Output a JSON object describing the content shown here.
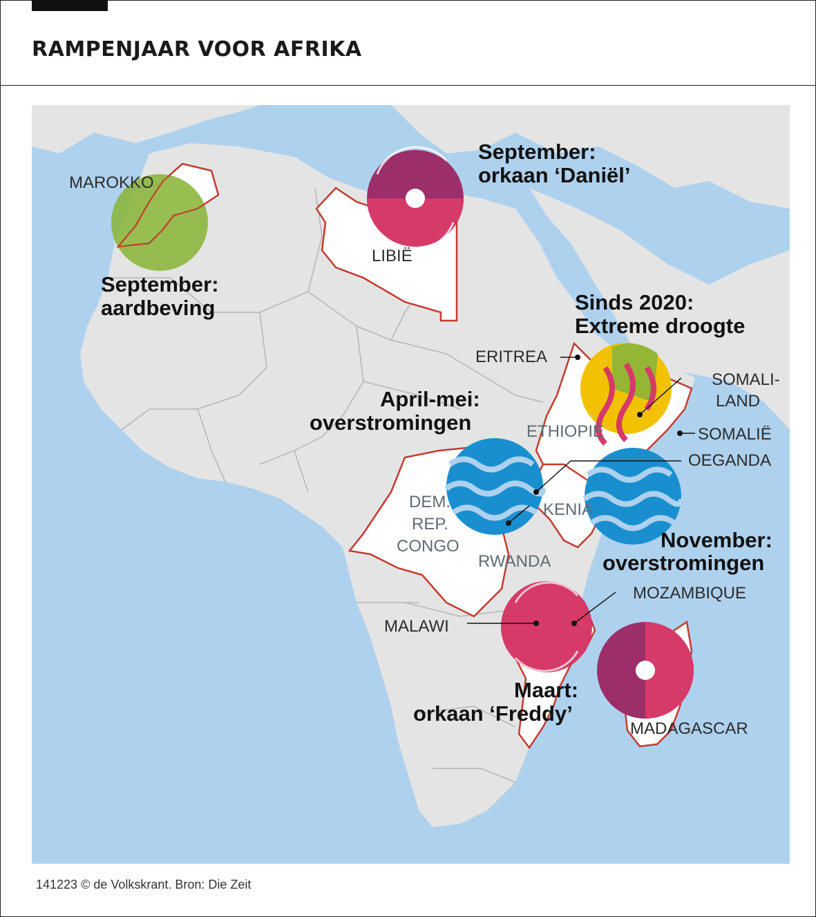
{
  "header": {
    "title": "RAMPENJAAR VOOR AFRIKA"
  },
  "events": {
    "marokko": {
      "line1": "September:",
      "line2": "aardbeving"
    },
    "libie": {
      "line1": "September:",
      "line2": "orkaan ‘Daniël’"
    },
    "droogte": {
      "line1": "Sinds 2020:",
      "line2": "Extreme droogte"
    },
    "april": {
      "line1": "April-mei:",
      "line2": "overstromingen"
    },
    "november": {
      "line1": "November:",
      "line2": "overstromingen"
    },
    "maart": {
      "line1": "Maart:",
      "line2": "orkaan ‘Freddy’"
    }
  },
  "countries": {
    "marokko": "MAROKKO",
    "libie": "LIBIË",
    "eritrea": "ERITREA",
    "somaliland_1": "SOMALI-",
    "somaliland_2": "LAND",
    "ethiopie": "ETHIOPIË",
    "somalie": "SOMALIË",
    "oeganda": "OEGANDA",
    "kenia": "KENIA",
    "congo_1": "DEM.",
    "congo_2": "REP.",
    "congo_3": "CONGO",
    "rwanda": "RWANDA",
    "mozambique": "MOZAMBIQUE",
    "malawi": "MALAWI",
    "madagascar": "MADAGASCAR"
  },
  "footer": {
    "credit": "141223 © de Volkskrant. Bron: Die Zeit"
  },
  "colors": {
    "sea": "#aed1ee",
    "land": "#e4e4e4",
    "border_red": "#c53a2e",
    "earthquake": "#8ab53a",
    "drought": "#f2c200",
    "flood": "#1a8fd0",
    "cyclone_dark": "#9c2f6a",
    "cyclone_light": "#d63a68"
  }
}
